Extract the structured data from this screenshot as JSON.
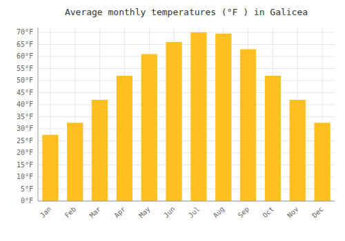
{
  "chart_data": {
    "type": "bar",
    "title": "Average monthly temperatures (°F ) in Galicea",
    "categories": [
      "Jan",
      "Feb",
      "Mar",
      "Apr",
      "May",
      "Jun",
      "Jul",
      "Aug",
      "Sep",
      "Oct",
      "Nov",
      "Dec"
    ],
    "values": [
      27.5,
      32.5,
      42.0,
      52.0,
      61.0,
      66.0,
      70.0,
      69.5,
      63.0,
      52.0,
      42.0,
      32.5
    ],
    "color": "#FFC020",
    "ylim": [
      0,
      72
    ],
    "yticks": [
      {
        "value": 0,
        "label": "0°F"
      },
      {
        "value": 5,
        "label": "5°F"
      },
      {
        "value": 10,
        "label": "10°F"
      },
      {
        "value": 15,
        "label": "15°F"
      },
      {
        "value": 20,
        "label": "20°F"
      },
      {
        "value": 25,
        "label": "25°F"
      },
      {
        "value": 30,
        "label": "30°F"
      },
      {
        "value": 35,
        "label": "35°F"
      },
      {
        "value": 40,
        "label": "40°F"
      },
      {
        "value": 45,
        "label": "45°F"
      },
      {
        "value": 50,
        "label": "50°F"
      },
      {
        "value": 55,
        "label": "55°F"
      },
      {
        "value": 60,
        "label": "60°F"
      },
      {
        "value": 65,
        "label": "65°F"
      },
      {
        "value": 70,
        "label": "70°F"
      }
    ],
    "grid": true
  }
}
